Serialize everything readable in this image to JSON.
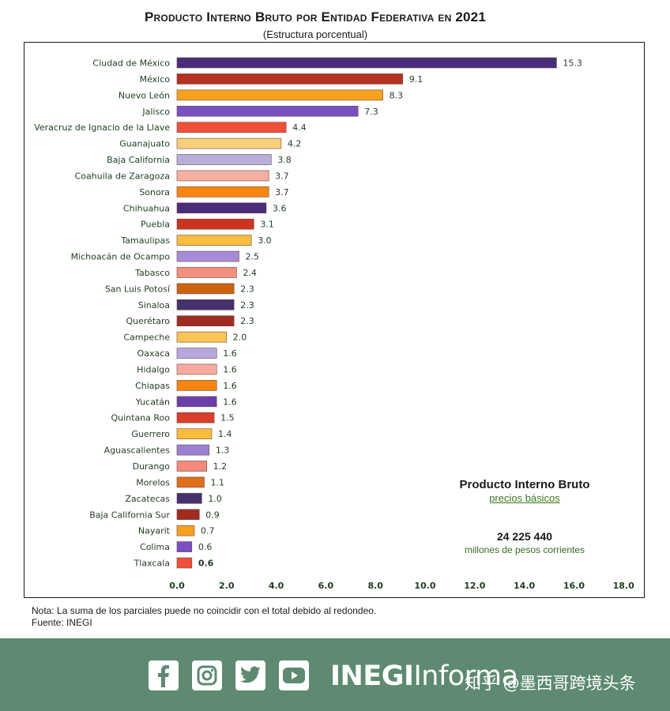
{
  "header": {
    "title": "Producto Interno Bruto por Entidad Federativa en 2021",
    "subtitle": "(Estructura porcentual)"
  },
  "chart_data": {
    "type": "bar",
    "orientation": "horizontal",
    "title": "Producto Interno Bruto por Entidad Federativa en 2021",
    "subtitle": "(Estructura porcentual)",
    "xlim": [
      0,
      18
    ],
    "xticks": [
      "0.0",
      "2.0",
      "4.0",
      "6.0",
      "8.0",
      "10.0",
      "12.0",
      "14.0",
      "16.0",
      "18.0"
    ],
    "categories": [
      "Ciudad de México",
      "México",
      "Nuevo León",
      "Jalisco",
      "Veracruz de Ignacio de la Llave",
      "Guanajuato",
      "Baja California",
      "Coahuila de Zaragoza",
      "Sonora",
      "Chihuahua",
      "Puebla",
      "Tamaulipas",
      "Michoacán de Ocampo",
      "Tabasco",
      "San Luis Potosí",
      "Sinaloa",
      "Querétaro",
      "Campeche",
      "Oaxaca",
      "Hidalgo",
      "Chiapas",
      "Yucatán",
      "Quintana Roo",
      "Guerrero",
      "Aguascalientes",
      "Durango",
      "Morelos",
      "Zacatecas",
      "Baja California Sur",
      "Nayarit",
      "Colima",
      "Tlaxcala"
    ],
    "values": [
      15.3,
      9.1,
      8.3,
      7.3,
      4.4,
      4.2,
      3.8,
      3.7,
      3.7,
      3.6,
      3.1,
      3.0,
      2.5,
      2.4,
      2.3,
      2.3,
      2.3,
      2.0,
      1.6,
      1.6,
      1.6,
      1.6,
      1.5,
      1.4,
      1.3,
      1.2,
      1.1,
      1.0,
      0.9,
      0.7,
      0.6,
      0.6
    ],
    "value_labels": [
      "15.3",
      "9.1",
      "8.3",
      "7.3",
      "4.4",
      "4.2",
      "3.8",
      "3.7",
      "3.7",
      "3.6",
      "3.1",
      "3.0",
      "2.5",
      "2.4",
      "2.3",
      "2.3",
      "2.3",
      "2.0",
      "1.6",
      "1.6",
      "1.6",
      "1.6",
      "1.5",
      "1.4",
      "1.3",
      "1.2",
      "1.1",
      "1.0",
      "0.9",
      "0.7",
      "0.6",
      "0.6"
    ],
    "colors": [
      "#4a2d7a",
      "#b5321e",
      "#f7a21b",
      "#7a4fc0",
      "#f0503a",
      "#f9cf7a",
      "#b9aedb",
      "#f4afa0",
      "#f7850f",
      "#4a2d7a",
      "#cc3320",
      "#f9bd3f",
      "#a68cd6",
      "#f38f7c",
      "#cc630f",
      "#46306e",
      "#a02c1f",
      "#fac457",
      "#b7a6df",
      "#f6aa9f",
      "#f6850f",
      "#6a3fa8",
      "#d93d2c",
      "#fbbb3c",
      "#9b80d3",
      "#f38a7c",
      "#dd6f18",
      "#46306e",
      "#a02c1f",
      "#f8a11f",
      "#7a4fc0",
      "#f0503a"
    ]
  },
  "info_box": {
    "title": "Producto Interno Bruto",
    "subtitle": "precios básicos",
    "value": "24 225 440",
    "unit": "millones de pesos corrientes"
  },
  "notes": {
    "note": "Nota: La suma de los parciales puede no coincidir con el total debido al redondeo.",
    "source": "Fuente: INEGI"
  },
  "footer": {
    "social_icons": [
      "facebook-icon",
      "instagram-icon",
      "twitter-icon",
      "youtube-icon"
    ],
    "brand_bold": "INEGI",
    "brand_light": "Informa",
    "watermark": "知乎 @墨西哥跨境头条",
    "background": "#5d8a70"
  }
}
